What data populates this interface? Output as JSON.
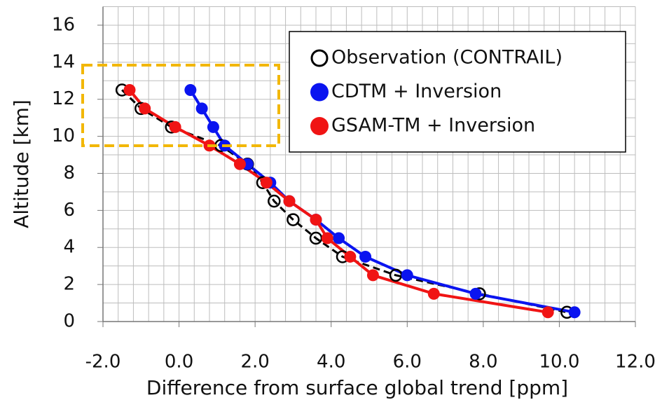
{
  "chart_data": {
    "type": "scatter",
    "xlabel": "Difference from surface global trend [ppm]",
    "ylabel": "Altitude [km]",
    "xlim": [
      -2,
      12
    ],
    "ylim": [
      0,
      17
    ],
    "xticks": [
      {
        "value": -2,
        "label": "-2.0"
      },
      {
        "value": 0,
        "label": "0.0"
      },
      {
        "value": 2,
        "label": "2.0"
      },
      {
        "value": 4,
        "label": "4.0"
      },
      {
        "value": 6,
        "label": "6.0"
      },
      {
        "value": 8,
        "label": "8.0"
      },
      {
        "value": 10,
        "label": "10.0"
      },
      {
        "value": 12,
        "label": "12.0"
      }
    ],
    "yticks": [
      0,
      2,
      4,
      6,
      8,
      10,
      12,
      14,
      16
    ],
    "grid": true,
    "grid_x_step": 0.4,
    "grid_y_step": 1,
    "legend": "upper right",
    "series": [
      {
        "name": "Observation (CONTRAIL)",
        "color": "#000000",
        "marker": "open",
        "line": "dashed",
        "x": [
          -1.5,
          -1.0,
          -0.2,
          1.1,
          1.8,
          2.2,
          2.5,
          3.0,
          3.6,
          4.3,
          5.7,
          7.9,
          10.2
        ],
        "values": [
          12.5,
          11.5,
          10.5,
          9.5,
          8.5,
          7.5,
          6.5,
          5.5,
          4.5,
          3.5,
          2.5,
          1.5,
          0.5
        ]
      },
      {
        "name": "CDTM + Inversion",
        "color": "#0a14f0",
        "marker": "filled",
        "line": "solid",
        "x": [
          0.3,
          0.6,
          0.9,
          1.2,
          1.8,
          2.4,
          2.9,
          3.6,
          4.2,
          4.9,
          6.0,
          7.8,
          10.4
        ],
        "values": [
          12.5,
          11.5,
          10.5,
          9.5,
          8.5,
          7.5,
          6.5,
          5.5,
          4.5,
          3.5,
          2.5,
          1.5,
          0.5
        ]
      },
      {
        "name": "GSAM-TM + Inversion",
        "color": "#f01414",
        "marker": "filled",
        "line": "solid",
        "x": [
          -1.3,
          -0.9,
          -0.1,
          0.8,
          1.6,
          2.3,
          2.9,
          3.6,
          3.9,
          4.5,
          5.1,
          6.7,
          9.7
        ],
        "values": [
          12.5,
          11.5,
          10.5,
          9.5,
          8.5,
          7.5,
          6.5,
          5.5,
          4.5,
          3.5,
          2.5,
          1.5,
          0.5
        ]
      }
    ]
  }
}
